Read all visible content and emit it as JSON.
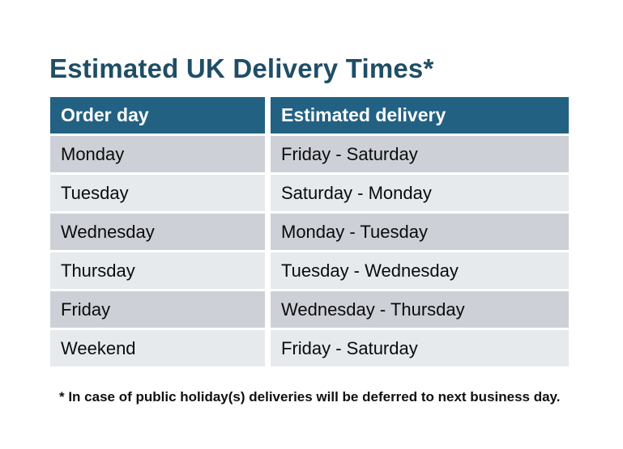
{
  "title": "Estimated UK Delivery Times*",
  "table": {
    "columns": [
      "Order day",
      "Estimated delivery"
    ],
    "rows": [
      [
        "Monday",
        "Friday - Saturday"
      ],
      [
        "Tuesday",
        "Saturday - Monday"
      ],
      [
        "Wednesday",
        "Monday - Tuesday"
      ],
      [
        "Thursday",
        "Tuesday - Wednesday"
      ],
      [
        "Friday",
        "Wednesday - Thursday"
      ],
      [
        "Weekend",
        "Friday - Saturday"
      ]
    ]
  },
  "footnote": "* In case of public holiday(s) deliveries will be deferred to next business day.",
  "colors": {
    "title": "#1F4E66",
    "header_bg": "#236183",
    "header_text": "#FFFFFF",
    "row_dark": "#CDD0D7",
    "row_light": "#E6EAED",
    "cell_text": "#0B0B0B",
    "background": "#FFFFFF"
  }
}
